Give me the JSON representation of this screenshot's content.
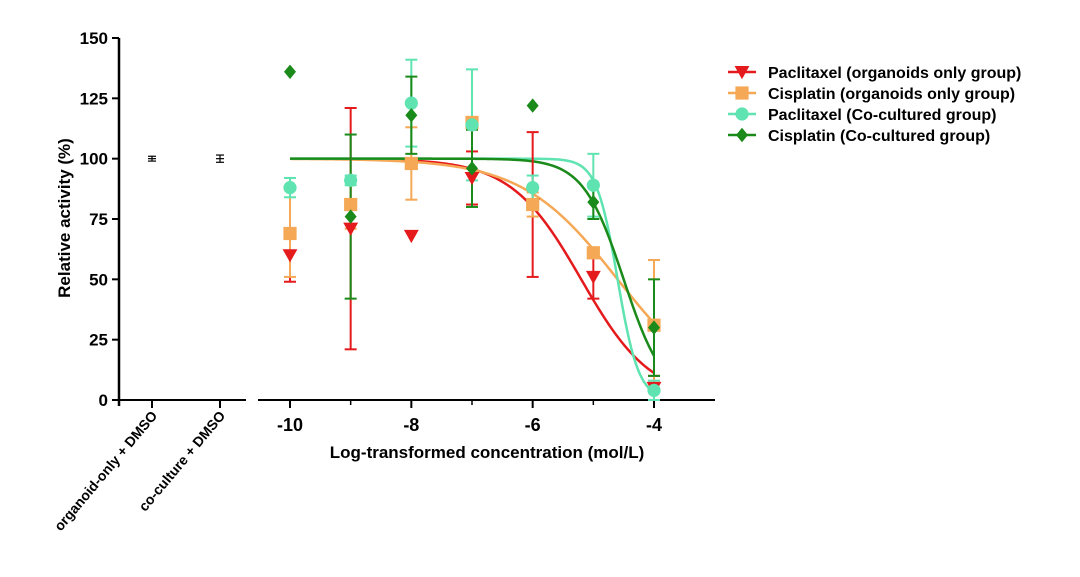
{
  "chart_data": {
    "type": "scatter",
    "xlabel": "Log-transformed concentration (mol/L)",
    "ylabel": "Relative activity (%)",
    "ylim": [
      0,
      150
    ],
    "xlim": [
      -11,
      -3
    ],
    "y_ticks": [
      "0",
      "25",
      "50",
      "75",
      "100",
      "125",
      "150"
    ],
    "x_ticks": [
      {
        "value": -10,
        "label": "-10"
      },
      {
        "value": -8,
        "label": "-8"
      },
      {
        "value": -6,
        "label": "-6"
      },
      {
        "value": -4,
        "label": "-4"
      }
    ],
    "x_minor_ticks": [
      -9,
      -7,
      -5
    ],
    "controls": [
      {
        "label": "organoid-only + DMSO",
        "mean": 100,
        "err": 1
      },
      {
        "label": "co-culture + DMSO",
        "mean": 100,
        "err": 1.5
      }
    ],
    "legend_position": "top-right",
    "series": [
      {
        "name": "Paclitaxel (organoids only group)",
        "color": "#e41a1c",
        "marker": "triangle-down",
        "fit": {
          "top": 100,
          "bottom": 0,
          "log_ic50": -5.2,
          "hill": 0.75
        },
        "points": [
          {
            "x": -10,
            "y": 60,
            "err": 11
          },
          {
            "x": -9,
            "y": 71,
            "err": 50
          },
          {
            "x": -8,
            "y": 68
          },
          {
            "x": -7,
            "y": 92,
            "err": 11
          },
          {
            "x": -6,
            "y": 81,
            "err": 30
          },
          {
            "x": -5,
            "y": 51,
            "err": 9
          },
          {
            "x": -4,
            "y": 5,
            "err": 5
          }
        ]
      },
      {
        "name": "Cisplatin (organoids only group)",
        "color": "#f5a855",
        "marker": "square",
        "fit": {
          "top": 100,
          "bottom": 0,
          "log_ic50": -4.6,
          "hill": 0.55
        },
        "points": [
          {
            "x": -10,
            "y": 69,
            "err": 18
          },
          {
            "x": -9,
            "y": 81,
            "err": 10
          },
          {
            "x": -8,
            "y": 98,
            "err": 15
          },
          {
            "x": -7,
            "y": 115,
            "err": 2
          },
          {
            "x": -6,
            "y": 81,
            "err": 5
          },
          {
            "x": -5,
            "y": 61,
            "err": 2
          },
          {
            "x": -4,
            "y": 31,
            "err": 27
          }
        ]
      },
      {
        "name": "Paclitaxel (Co-cultured group)",
        "color": "#5ee3b1",
        "marker": "circle",
        "fit": {
          "top": 100,
          "bottom": 0,
          "log_ic50": -4.6,
          "hill": 2.5
        },
        "points": [
          {
            "x": -10,
            "y": 88,
            "err": 4
          },
          {
            "x": -9,
            "y": 91,
            "err": 2
          },
          {
            "x": -8,
            "y": 123,
            "err": 18
          },
          {
            "x": -7,
            "y": 114,
            "err": 23
          },
          {
            "x": -6,
            "y": 88,
            "err": 5
          },
          {
            "x": -5,
            "y": 89,
            "err": 13
          },
          {
            "x": -4,
            "y": 4,
            "err": 4
          }
        ]
      },
      {
        "name": "Cisplatin (Co-cultured group)",
        "color": "#1a8a1a",
        "marker": "diamond",
        "fit": {
          "top": 100,
          "bottom": 0,
          "log_ic50": -4.5,
          "hill": 1.3
        },
        "points": [
          {
            "x": -10,
            "y": 136
          },
          {
            "x": -9,
            "y": 76,
            "err": 34
          },
          {
            "x": -8,
            "y": 118,
            "err": 16
          },
          {
            "x": -7,
            "y": 96,
            "err": 16
          },
          {
            "x": -6,
            "y": 122
          },
          {
            "x": -5,
            "y": 82,
            "err": 7
          },
          {
            "x": -4,
            "y": 30,
            "err": 20
          }
        ]
      }
    ]
  }
}
